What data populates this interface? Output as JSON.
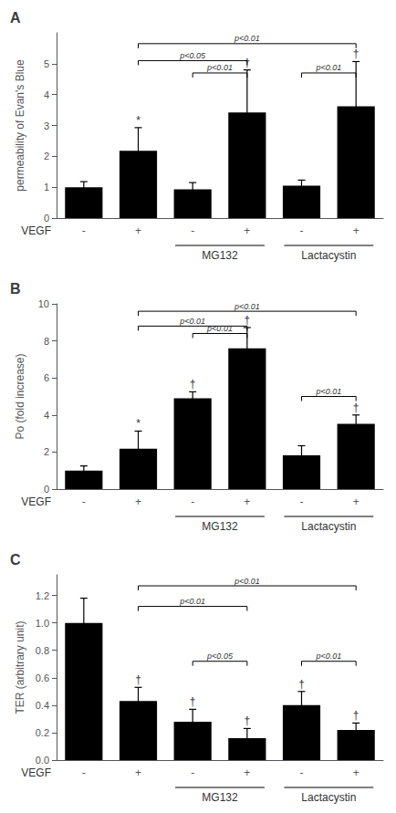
{
  "chart_data": [
    {
      "type": "bar",
      "title": "A",
      "ylabel": "permeability of Evan's Blue",
      "xlabel": "VEGF",
      "categories": [
        "-",
        "+",
        "-",
        "+",
        "-",
        "+"
      ],
      "values": [
        1.0,
        2.18,
        0.93,
        3.42,
        1.05,
        3.62
      ],
      "errors": [
        0.18,
        0.75,
        0.22,
        1.38,
        0.18,
        1.45
      ],
      "color": "#000000",
      "ylim": [
        0,
        6
      ],
      "yticks": [
        0,
        1,
        2,
        3,
        4,
        5
      ],
      "grid": false,
      "symbols": [
        null,
        "*",
        null,
        "†",
        null,
        "†"
      ],
      "brackets": [
        {
          "from": 1,
          "to": 3,
          "y": 5.1,
          "label": "p<0.05"
        },
        {
          "from": 1,
          "to": 5,
          "y": 5.65,
          "label": "p<0.01"
        },
        {
          "from": 2,
          "to": 3,
          "y": 4.7,
          "label": "p<0.01"
        },
        {
          "from": 4,
          "to": 5,
          "y": 4.7,
          "label": "p<0.01"
        }
      ],
      "groups": [
        {
          "label": "MG132",
          "from": 2,
          "to": 3
        },
        {
          "label": "Lactacystin",
          "from": 4,
          "to": 5
        }
      ]
    },
    {
      "type": "bar",
      "title": "B",
      "ylabel": "Po (fold increase)",
      "xlabel": "VEGF",
      "categories": [
        "-",
        "+",
        "-",
        "+",
        "-",
        "+"
      ],
      "values": [
        1.0,
        2.18,
        4.9,
        7.6,
        1.82,
        3.52
      ],
      "errors": [
        0.25,
        0.95,
        0.35,
        1.12,
        0.52,
        0.48
      ],
      "color": "#000000",
      "ylim": [
        0,
        10
      ],
      "yticks": [
        0,
        2,
        4,
        6,
        8,
        10
      ],
      "grid": false,
      "symbols": [
        null,
        "*",
        "†",
        "†",
        null,
        "†"
      ],
      "brackets": [
        {
          "from": 1,
          "to": 3,
          "y": 8.8,
          "label": "p<0.01"
        },
        {
          "from": 1,
          "to": 5,
          "y": 9.6,
          "label": "p<0.01"
        },
        {
          "from": 2,
          "to": 3,
          "y": 8.4,
          "label": "p<0.01"
        },
        {
          "from": 4,
          "to": 5,
          "y": 5.0,
          "label": "p<0.01"
        }
      ],
      "groups": [
        {
          "label": "MG132",
          "from": 2,
          "to": 3
        },
        {
          "label": "Lactacystin",
          "from": 4,
          "to": 5
        }
      ]
    },
    {
      "type": "bar",
      "title": "C",
      "ylabel": "TER (arbitrary unit)",
      "xlabel": "VEGF",
      "categories": [
        "-",
        "+",
        "-",
        "+",
        "-",
        "+"
      ],
      "values": [
        1.0,
        0.43,
        0.28,
        0.16,
        0.4,
        0.22
      ],
      "errors": [
        0.18,
        0.1,
        0.09,
        0.07,
        0.1,
        0.05
      ],
      "color": "#000000",
      "ylim": [
        0,
        1.35
      ],
      "yticks": [
        {
          "value": 0,
          "label": "0.0"
        },
        0.2,
        0.4,
        0.6,
        0.8,
        {
          "value": 1.0,
          "label": "1.0"
        },
        1.2
      ],
      "grid": false,
      "symbols": [
        null,
        "†",
        "†",
        "†",
        "†",
        "†"
      ],
      "brackets": [
        {
          "from": 1,
          "to": 3,
          "y": 1.12,
          "label": "p<0.01"
        },
        {
          "from": 1,
          "to": 5,
          "y": 1.27,
          "label": "p<0.01"
        },
        {
          "from": 2,
          "to": 3,
          "y": 0.72,
          "label": "p<0.05"
        },
        {
          "from": 4,
          "to": 5,
          "y": 0.72,
          "label": "p<0.01"
        }
      ],
      "groups": [
        {
          "label": "MG132",
          "from": 2,
          "to": 3
        },
        {
          "label": "Lactacystin",
          "from": 4,
          "to": 5
        }
      ]
    }
  ]
}
